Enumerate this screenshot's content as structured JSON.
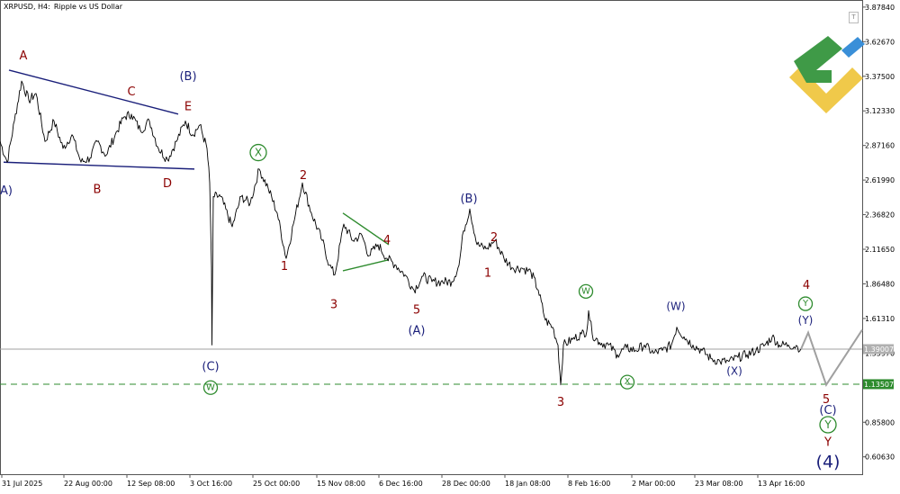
{
  "header": {
    "symbol": "XRPUSD, H4:",
    "description": "Ripple vs US Dollar"
  },
  "toolbar": {
    "corner_button": "T"
  },
  "colors": {
    "price": "#000000",
    "navy": "#1a1f7a",
    "darkred": "#8b0000",
    "green": "#2e8b2e",
    "gray": "#a0a0a0",
    "axis": "#555555"
  },
  "chart_data": {
    "type": "line",
    "title": "",
    "ylim": [
      0.48,
      3.93
    ],
    "y_ticks": [
      "3.87840",
      "3.62670",
      "3.37500",
      "3.12330",
      "2.87160",
      "2.61990",
      "2.36820",
      "2.11650",
      "1.86480",
      "1.61310",
      "1.35970",
      "0.85800",
      "0.60630"
    ],
    "x_ticks": [
      "31 Jul 2025",
      "22 Aug 00:00",
      "12 Sep 08:00",
      "3 Oct 16:00",
      "25 Oct 00:00",
      "15 Nov 08:00",
      "6 Dec 16:00",
      "28 Dec 00:00",
      "18 Jan 08:00",
      "8 Feb 16:00",
      "2 Mar 00:00",
      "23 Mar 08:00",
      "13 Apr 16:00"
    ],
    "current_price": {
      "label": "1.39007",
      "value": 1.39
    },
    "support_level": {
      "label": "1.13507",
      "value": 1.135
    },
    "price_series": [
      {
        "t": 0,
        "v": 2.9
      },
      {
        "t": 8,
        "v": 2.75
      },
      {
        "t": 16,
        "v": 3.05
      },
      {
        "t": 24,
        "v": 3.34
      },
      {
        "t": 32,
        "v": 3.2
      },
      {
        "t": 40,
        "v": 3.25
      },
      {
        "t": 50,
        "v": 2.9
      },
      {
        "t": 60,
        "v": 3.05
      },
      {
        "t": 70,
        "v": 2.85
      },
      {
        "t": 80,
        "v": 2.95
      },
      {
        "t": 90,
        "v": 2.75
      },
      {
        "t": 100,
        "v": 2.78
      },
      {
        "t": 108,
        "v": 2.9
      },
      {
        "t": 118,
        "v": 2.8
      },
      {
        "t": 128,
        "v": 2.95
      },
      {
        "t": 138,
        "v": 3.08
      },
      {
        "t": 146,
        "v": 3.1
      },
      {
        "t": 156,
        "v": 2.98
      },
      {
        "t": 166,
        "v": 3.05
      },
      {
        "t": 176,
        "v": 2.85
      },
      {
        "t": 186,
        "v": 2.77
      },
      {
        "t": 196,
        "v": 2.9
      },
      {
        "t": 206,
        "v": 3.05
      },
      {
        "t": 214,
        "v": 2.95
      },
      {
        "t": 222,
        "v": 3.02
      },
      {
        "t": 230,
        "v": 2.85
      },
      {
        "t": 233,
        "v": 2.6
      },
      {
        "t": 235,
        "v": 1.98
      },
      {
        "t": 235.5,
        "v": 1.42
      },
      {
        "t": 237,
        "v": 2.5
      },
      {
        "t": 245,
        "v": 2.5
      },
      {
        "t": 258,
        "v": 2.28
      },
      {
        "t": 268,
        "v": 2.5
      },
      {
        "t": 278,
        "v": 2.45
      },
      {
        "t": 288,
        "v": 2.7
      },
      {
        "t": 298,
        "v": 2.56
      },
      {
        "t": 308,
        "v": 2.38
      },
      {
        "t": 318,
        "v": 2.05
      },
      {
        "t": 326,
        "v": 2.3
      },
      {
        "t": 336,
        "v": 2.6
      },
      {
        "t": 346,
        "v": 2.38
      },
      {
        "t": 358,
        "v": 2.18
      },
      {
        "t": 366,
        "v": 2.0
      },
      {
        "t": 372,
        "v": 1.93
      },
      {
        "t": 382,
        "v": 2.3
      },
      {
        "t": 392,
        "v": 2.18
      },
      {
        "t": 402,
        "v": 2.22
      },
      {
        "t": 410,
        "v": 2.07
      },
      {
        "t": 420,
        "v": 2.15
      },
      {
        "t": 430,
        "v": 2.05
      },
      {
        "t": 440,
        "v": 2.0
      },
      {
        "t": 450,
        "v": 1.93
      },
      {
        "t": 460,
        "v": 1.82
      },
      {
        "t": 470,
        "v": 1.92
      },
      {
        "t": 480,
        "v": 1.88
      },
      {
        "t": 490,
        "v": 1.88
      },
      {
        "t": 502,
        "v": 1.88
      },
      {
        "t": 510,
        "v": 2.0
      },
      {
        "t": 515,
        "v": 2.25
      },
      {
        "t": 522,
        "v": 2.41
      },
      {
        "t": 530,
        "v": 2.15
      },
      {
        "t": 540,
        "v": 2.12
      },
      {
        "t": 550,
        "v": 2.18
      },
      {
        "t": 560,
        "v": 2.05
      },
      {
        "t": 570,
        "v": 1.98
      },
      {
        "t": 580,
        "v": 1.98
      },
      {
        "t": 590,
        "v": 1.95
      },
      {
        "t": 598,
        "v": 1.82
      },
      {
        "t": 606,
        "v": 1.6
      },
      {
        "t": 614,
        "v": 1.55
      },
      {
        "t": 620,
        "v": 1.42
      },
      {
        "t": 623,
        "v": 1.13
      },
      {
        "t": 626,
        "v": 1.42
      },
      {
        "t": 636,
        "v": 1.46
      },
      {
        "t": 646,
        "v": 1.5
      },
      {
        "t": 652,
        "v": 1.52
      },
      {
        "t": 654,
        "v": 1.67
      },
      {
        "t": 658,
        "v": 1.5
      },
      {
        "t": 666,
        "v": 1.44
      },
      {
        "t": 676,
        "v": 1.42
      },
      {
        "t": 686,
        "v": 1.35
      },
      {
        "t": 696,
        "v": 1.4
      },
      {
        "t": 706,
        "v": 1.38
      },
      {
        "t": 716,
        "v": 1.42
      },
      {
        "t": 726,
        "v": 1.36
      },
      {
        "t": 736,
        "v": 1.38
      },
      {
        "t": 746,
        "v": 1.42
      },
      {
        "t": 752,
        "v": 1.55
      },
      {
        "t": 760,
        "v": 1.48
      },
      {
        "t": 770,
        "v": 1.42
      },
      {
        "t": 780,
        "v": 1.38
      },
      {
        "t": 790,
        "v": 1.32
      },
      {
        "t": 800,
        "v": 1.3
      },
      {
        "t": 810,
        "v": 1.3
      },
      {
        "t": 820,
        "v": 1.33
      },
      {
        "t": 830,
        "v": 1.35
      },
      {
        "t": 840,
        "v": 1.38
      },
      {
        "t": 850,
        "v": 1.42
      },
      {
        "t": 858,
        "v": 1.48
      },
      {
        "t": 866,
        "v": 1.42
      },
      {
        "t": 876,
        "v": 1.42
      },
      {
        "t": 886,
        "v": 1.41
      },
      {
        "t": 890,
        "v": 1.39
      }
    ],
    "forecast_path": [
      {
        "t": 890,
        "v": 1.39
      },
      {
        "t": 898,
        "v": 1.51
      },
      {
        "t": 918,
        "v": 1.13
      },
      {
        "t": 958,
        "v": 1.53
      }
    ],
    "trend_lines": [
      {
        "name": "upper-wedge-line",
        "color": "navy",
        "points": [
          {
            "t": 10,
            "v": 3.42
          },
          {
            "t": 198,
            "v": 3.1
          }
        ]
      },
      {
        "name": "lower-wedge-line",
        "color": "navy",
        "points": [
          {
            "t": 4,
            "v": 2.75
          },
          {
            "t": 216,
            "v": 2.7
          }
        ]
      },
      {
        "name": "triangle-upper-line",
        "color": "green",
        "points": [
          {
            "t": 381,
            "v": 2.38
          },
          {
            "t": 432,
            "v": 2.15
          }
        ]
      },
      {
        "name": "triangle-lower-line",
        "color": "green",
        "points": [
          {
            "t": 381,
            "v": 1.96
          },
          {
            "t": 432,
            "v": 2.04
          }
        ]
      }
    ],
    "wave_labels": [
      {
        "text": "A",
        "t": 26,
        "v": 3.52,
        "color": "darkred",
        "circled": false,
        "size": 13
      },
      {
        "text": "C",
        "t": 146,
        "v": 3.26,
        "color": "darkred",
        "circled": false,
        "size": 13
      },
      {
        "text": "(B)",
        "t": 209,
        "v": 3.37,
        "color": "navy",
        "circled": false,
        "size": 13
      },
      {
        "text": "E",
        "t": 209,
        "v": 3.15,
        "color": "darkred",
        "circled": false,
        "size": 13
      },
      {
        "text": "A)",
        "t": 7,
        "v": 2.54,
        "color": "navy",
        "circled": false,
        "size": 13
      },
      {
        "text": "B",
        "t": 108,
        "v": 2.55,
        "color": "darkred",
        "circled": false,
        "size": 13
      },
      {
        "text": "D",
        "t": 186,
        "v": 2.59,
        "color": "darkred",
        "circled": false,
        "size": 13
      },
      {
        "text": "X",
        "t": 287,
        "v": 2.82,
        "color": "green",
        "circled": true,
        "size": 12
      },
      {
        "text": "2",
        "t": 337,
        "v": 2.65,
        "color": "darkred",
        "circled": false,
        "size": 13
      },
      {
        "text": "(B)",
        "t": 521,
        "v": 2.48,
        "color": "navy",
        "circled": false,
        "size": 13
      },
      {
        "text": "4",
        "t": 430,
        "v": 2.18,
        "color": "darkred",
        "circled": false,
        "size": 13
      },
      {
        "text": "2",
        "t": 549,
        "v": 2.2,
        "color": "darkred",
        "circled": false,
        "size": 13
      },
      {
        "text": "1",
        "t": 316,
        "v": 1.99,
        "color": "darkred",
        "circled": false,
        "size": 13
      },
      {
        "text": "1",
        "t": 542,
        "v": 1.94,
        "color": "darkred",
        "circled": false,
        "size": 13
      },
      {
        "text": "3",
        "t": 371,
        "v": 1.71,
        "color": "darkred",
        "circled": false,
        "size": 13
      },
      {
        "text": "5",
        "t": 463,
        "v": 1.67,
        "color": "darkred",
        "circled": false,
        "size": 13
      },
      {
        "text": "(A)",
        "t": 463,
        "v": 1.52,
        "color": "navy",
        "circled": false,
        "size": 13
      },
      {
        "text": "W",
        "t": 651,
        "v": 1.81,
        "color": "green",
        "circled": true,
        "size": 10
      },
      {
        "text": "(W)",
        "t": 751,
        "v": 1.7,
        "color": "navy",
        "circled": false,
        "size": 12
      },
      {
        "text": "4",
        "t": 896,
        "v": 1.85,
        "color": "darkred",
        "circled": false,
        "size": 13
      },
      {
        "text": "Y",
        "t": 895,
        "v": 1.72,
        "color": "green",
        "circled": true,
        "size": 10
      },
      {
        "text": "(Y)",
        "t": 895,
        "v": 1.6,
        "color": "navy",
        "circled": false,
        "size": 12
      },
      {
        "text": "(C)",
        "t": 234,
        "v": 1.26,
        "color": "navy",
        "circled": false,
        "size": 13
      },
      {
        "text": "W",
        "t": 234,
        "v": 1.11,
        "color": "green",
        "circled": true,
        "size": 10
      },
      {
        "text": "X",
        "t": 697,
        "v": 1.15,
        "color": "green",
        "circled": true,
        "size": 10
      },
      {
        "text": "(X)",
        "t": 816,
        "v": 1.23,
        "color": "navy",
        "circled": false,
        "size": 12
      },
      {
        "text": "3",
        "t": 623,
        "v": 1.0,
        "color": "darkred",
        "circled": false,
        "size": 13
      },
      {
        "text": "5",
        "t": 918,
        "v": 1.02,
        "color": "darkred",
        "circled": false,
        "size": 13
      },
      {
        "text": "(C)",
        "t": 920,
        "v": 0.94,
        "color": "navy",
        "circled": false,
        "size": 13
      },
      {
        "text": "Y",
        "t": 920,
        "v": 0.84,
        "color": "green",
        "circled": true,
        "size": 12
      },
      {
        "text": "Y",
        "t": 920,
        "v": 0.71,
        "color": "darkred",
        "circled": false,
        "size": 13
      },
      {
        "text": "(4)",
        "t": 920,
        "v": 0.57,
        "color": "navy",
        "circled": false,
        "size": 19
      }
    ]
  }
}
